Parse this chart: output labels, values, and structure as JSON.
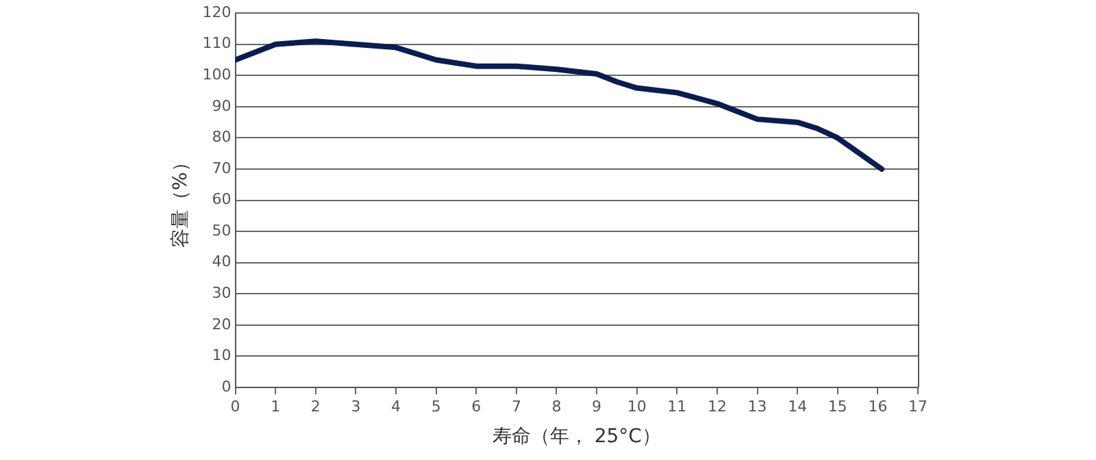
{
  "chart_data": {
    "type": "line",
    "xlabel": "寿命（年， 25°C）",
    "ylabel": "容量（%）",
    "x": [
      0,
      1,
      2,
      3,
      4,
      5,
      6,
      7,
      8,
      9,
      9.5,
      10,
      11,
      12,
      12.5,
      13,
      14,
      14.5,
      15,
      16.1
    ],
    "series": [
      {
        "color": "#0b1c4f",
        "values": [
          105,
          110,
          111,
          110,
          109,
          105,
          103,
          103,
          102,
          100.5,
          98,
          96,
          94.5,
          91,
          88.5,
          86,
          85,
          83,
          80,
          70
        ]
      }
    ],
    "xlim": [
      0,
      17
    ],
    "xticks": [
      0,
      1,
      2,
      3,
      4,
      5,
      6,
      7,
      8,
      9,
      10,
      11,
      12,
      13,
      14,
      15,
      16,
      17
    ],
    "ylim": [
      0,
      120
    ],
    "yticks": [
      0,
      10,
      20,
      30,
      40,
      50,
      60,
      70,
      80,
      90,
      100,
      110,
      120
    ],
    "grid": "y",
    "legend": false,
    "marker": "none",
    "line_style": "solid"
  }
}
